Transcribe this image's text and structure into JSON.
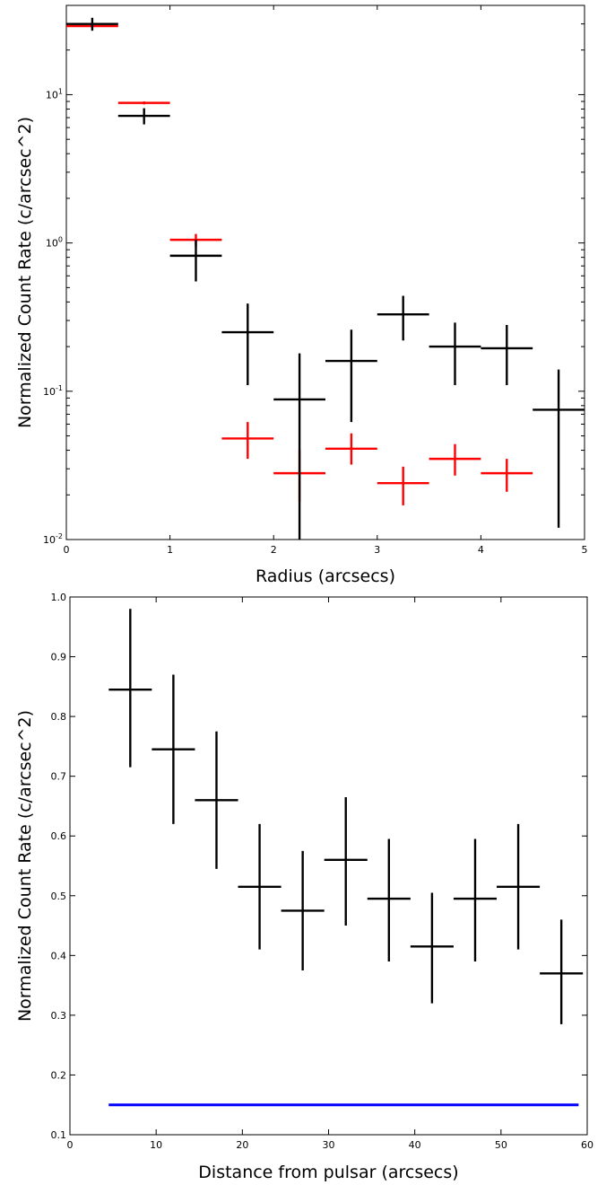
{
  "chart_data": [
    {
      "type": "scatter",
      "title": "",
      "xlabel": "Radius (arcsecs)",
      "ylabel": "Normalized Count Rate (c/arcsec^2)",
      "xscale": "linear",
      "yscale": "log",
      "xlim": [
        0,
        5
      ],
      "ylim": [
        0.01,
        40
      ],
      "xticks": [
        "0",
        "1",
        "2",
        "3",
        "4",
        "5"
      ],
      "yticks": [
        "10^-2",
        "10^-1",
        "10^0",
        "10^1"
      ],
      "grid": false,
      "colors": {
        "black": "#000000",
        "red": "#ff0000"
      },
      "series": [
        {
          "color": "#000000",
          "points": [
            {
              "x": 0.25,
              "y": 30,
              "xerr": 0.25,
              "ylo": 27,
              "yhi": 33
            },
            {
              "x": 0.75,
              "y": 7.2,
              "xerr": 0.25,
              "ylo": 6.3,
              "yhi": 8.1
            },
            {
              "x": 1.25,
              "y": 0.82,
              "xerr": 0.25,
              "ylo": 0.55,
              "yhi": 1.05
            },
            {
              "x": 1.75,
              "y": 0.25,
              "xerr": 0.25,
              "ylo": 0.11,
              "yhi": 0.39
            },
            {
              "x": 2.25,
              "y": 0.088,
              "xerr": 0.25,
              "ylo": 0.01,
              "yhi": 0.18
            },
            {
              "x": 2.75,
              "y": 0.16,
              "xerr": 0.25,
              "ylo": 0.062,
              "yhi": 0.26
            },
            {
              "x": 3.25,
              "y": 0.33,
              "xerr": 0.25,
              "ylo": 0.22,
              "yhi": 0.44
            },
            {
              "x": 3.75,
              "y": 0.2,
              "xerr": 0.25,
              "ylo": 0.11,
              "yhi": 0.29
            },
            {
              "x": 4.25,
              "y": 0.195,
              "xerr": 0.25,
              "ylo": 0.11,
              "yhi": 0.28
            },
            {
              "x": 4.75,
              "y": 0.075,
              "xerr": 0.25,
              "ylo": 0.012,
              "yhi": 0.14
            }
          ]
        },
        {
          "color": "#ff0000",
          "points": [
            {
              "x": 0.25,
              "y": 29,
              "xerr": 0.25,
              "ylo": 28,
              "yhi": 30
            },
            {
              "x": 0.75,
              "y": 8.8,
              "xerr": 0.25,
              "ylo": 8.6,
              "yhi": 9.0
            },
            {
              "x": 1.25,
              "y": 1.05,
              "xerr": 0.25,
              "ylo": 0.95,
              "yhi": 1.15
            },
            {
              "x": 1.75,
              "y": 0.048,
              "xerr": 0.25,
              "ylo": 0.035,
              "yhi": 0.062
            },
            {
              "x": 2.25,
              "y": 0.028,
              "xerr": 0.25,
              "ylo": 0.018,
              "yhi": 0.04
            },
            {
              "x": 2.75,
              "y": 0.041,
              "xerr": 0.25,
              "ylo": 0.032,
              "yhi": 0.052
            },
            {
              "x": 3.25,
              "y": 0.024,
              "xerr": 0.25,
              "ylo": 0.017,
              "yhi": 0.031
            },
            {
              "x": 3.75,
              "y": 0.035,
              "xerr": 0.25,
              "ylo": 0.027,
              "yhi": 0.044
            },
            {
              "x": 4.25,
              "y": 0.028,
              "xerr": 0.25,
              "ylo": 0.021,
              "yhi": 0.035
            }
          ]
        }
      ]
    },
    {
      "type": "scatter",
      "title": "",
      "xlabel": "Distance from pulsar (arcsecs)",
      "ylabel": "Normalized Count Rate (c/arcsec^2)",
      "xscale": "linear",
      "yscale": "linear",
      "xlim": [
        0,
        60
      ],
      "ylim": [
        0.1,
        1.0
      ],
      "xticks": [
        "0",
        "10",
        "20",
        "30",
        "40",
        "50",
        "60"
      ],
      "yticks": [
        "0.1",
        "0.2",
        "0.3",
        "0.4",
        "0.5",
        "0.6",
        "0.7",
        "0.8",
        "0.9",
        "1.0"
      ],
      "grid": false,
      "colors": {
        "points": "#000000",
        "line": "#0000ff"
      },
      "points": [
        {
          "x": 7,
          "y": 0.845,
          "xerr": 2.5,
          "ylo": 0.715,
          "yhi": 0.98
        },
        {
          "x": 12,
          "y": 0.745,
          "xerr": 2.5,
          "ylo": 0.62,
          "yhi": 0.87
        },
        {
          "x": 17,
          "y": 0.66,
          "xerr": 2.5,
          "ylo": 0.545,
          "yhi": 0.775
        },
        {
          "x": 22,
          "y": 0.515,
          "xerr": 2.5,
          "ylo": 0.41,
          "yhi": 0.62
        },
        {
          "x": 27,
          "y": 0.475,
          "xerr": 2.5,
          "ylo": 0.375,
          "yhi": 0.575
        },
        {
          "x": 32,
          "y": 0.56,
          "xerr": 2.5,
          "ylo": 0.45,
          "yhi": 0.665
        },
        {
          "x": 37,
          "y": 0.495,
          "xerr": 2.5,
          "ylo": 0.39,
          "yhi": 0.595
        },
        {
          "x": 42,
          "y": 0.415,
          "xerr": 2.5,
          "ylo": 0.32,
          "yhi": 0.505
        },
        {
          "x": 47,
          "y": 0.495,
          "xerr": 2.5,
          "ylo": 0.39,
          "yhi": 0.595
        },
        {
          "x": 52,
          "y": 0.515,
          "xerr": 2.5,
          "ylo": 0.41,
          "yhi": 0.62
        },
        {
          "x": 57,
          "y": 0.37,
          "xerr": 2.5,
          "ylo": 0.285,
          "yhi": 0.46
        }
      ],
      "line": {
        "x": [
          4.5,
          59
        ],
        "y": [
          0.15,
          0.15
        ]
      }
    }
  ]
}
